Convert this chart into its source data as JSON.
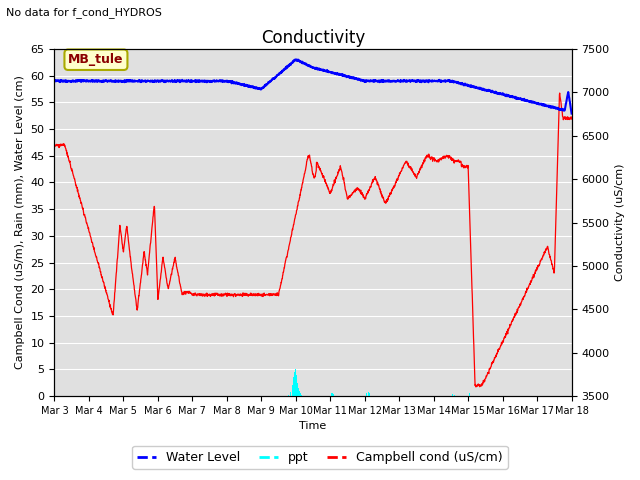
{
  "title": "Conductivity",
  "top_left_text": "No data for f_cond_HYDROS",
  "ylabel_left": "Campbell Cond (uS/m), Rain (mm), Water Level (cm)",
  "ylabel_right": "Conductivity (uS/cm)",
  "xlabel": "Time",
  "ylim_left": [
    0,
    65
  ],
  "ylim_right": [
    3500,
    7500
  ],
  "yticks_left": [
    0,
    5,
    10,
    15,
    20,
    25,
    30,
    35,
    40,
    45,
    50,
    55,
    60,
    65
  ],
  "yticks_right": [
    3500,
    4000,
    4500,
    5000,
    5500,
    6000,
    6500,
    7000,
    7500
  ],
  "background_color": "#e0e0e0",
  "legend_entries": [
    "Water Level",
    "ppt",
    "Campbell cond (uS/cm)"
  ],
  "legend_colors": [
    "blue",
    "cyan",
    "red"
  ],
  "box_label": "MB_tule",
  "box_bg": "#ffffcc",
  "box_edge": "#aaaa00",
  "title_fontsize": 12,
  "axis_label_fontsize": 8,
  "tick_fontsize": 8,
  "figsize": [
    6.4,
    4.8
  ],
  "dpi": 100
}
